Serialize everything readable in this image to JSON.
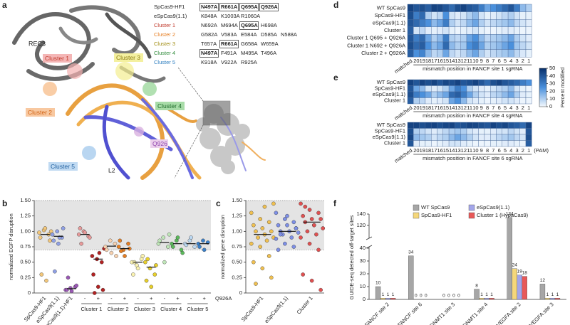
{
  "panel_labels": [
    "a",
    "b",
    "c",
    "d",
    "e",
    "f"
  ],
  "structure_labels": {
    "rec3": "REC3",
    "cluster1": "Cluster 1",
    "cluster2": "Cluster 2",
    "cluster3": "Cluster 3",
    "cluster4": "Cluster 4",
    "cluster5": "Cluster 5",
    "q926": "Q926",
    "l2": "L2"
  },
  "mutation_table": [
    {
      "name": "SpCas9-HF1",
      "color": "#222222",
      "mutations": [
        {
          "text": "N497A",
          "boxed": true
        },
        {
          "text": "R661A",
          "boxed": true
        },
        {
          "text": "Q695A",
          "boxed": true
        },
        {
          "text": "Q926A",
          "boxed": true
        }
      ]
    },
    {
      "name": "eSpCas9(1.1)",
      "color": "#222222",
      "mutations": [
        {
          "text": "K848A",
          "boxed": false
        },
        {
          "text": "K1003A",
          "boxed": false
        },
        {
          "text": "R1060A",
          "boxed": false
        }
      ]
    },
    {
      "name": "Cluster 1",
      "color": "#c0392b",
      "mutations": [
        {
          "text": "N692A",
          "boxed": false
        },
        {
          "text": "M694A",
          "boxed": false
        },
        {
          "text": "Q695A",
          "boxed": true
        },
        {
          "text": "H698A",
          "boxed": false
        }
      ]
    },
    {
      "name": "Cluster 2",
      "color": "#e67e22",
      "mutations": [
        {
          "text": "G582A",
          "boxed": false
        },
        {
          "text": "V583A",
          "boxed": false
        },
        {
          "text": "E584A",
          "boxed": false
        },
        {
          "text": "D585A",
          "boxed": false
        },
        {
          "text": "N588A",
          "boxed": false
        }
      ]
    },
    {
      "name": "Cluster 3",
      "color": "#a08c10",
      "mutations": [
        {
          "text": "T657A",
          "boxed": false
        },
        {
          "text": "R661A",
          "boxed": true
        },
        {
          "text": "G658A",
          "boxed": false
        },
        {
          "text": "W659A",
          "boxed": false
        }
      ]
    },
    {
      "name": "Cluster 4",
      "color": "#2e8b3a",
      "mutations": [
        {
          "text": "N497A",
          "boxed": true
        },
        {
          "text": "F491A",
          "boxed": false
        },
        {
          "text": "M495A",
          "boxed": false
        },
        {
          "text": "T496A",
          "boxed": false
        }
      ]
    },
    {
      "name": "Cluster 5",
      "color": "#2f7fc0",
      "mutations": [
        {
          "text": "K918A",
          "boxed": false
        },
        {
          "text": "V922A",
          "boxed": false
        },
        {
          "text": "R925A",
          "boxed": false
        }
      ]
    }
  ],
  "chart_data": [
    {
      "type": "dot",
      "ylabel": "normalized EGFP disruption",
      "ylim": [
        0,
        1.5
      ],
      "yticks": [
        0,
        0.25,
        {
          "value": 0.5,
          "label": "0.50"
        },
        0.75,
        {
          "value": 1,
          "label": "1.00"
        },
        1.25,
        {
          "value": 1.5,
          "label": "1.50"
        }
      ],
      "shaded_range": [
        0.7,
        1.5
      ],
      "categories": [
        "SpCas9-HF1",
        "eSpCas9(1.1)",
        "eSpCas9(1.1)-HF1",
        "-",
        "+",
        "-",
        "+",
        "-",
        "+",
        "-",
        "+",
        "-",
        "+"
      ],
      "group_labels": [
        "Cluster 1",
        "Cluster 2",
        "Cluster 3",
        "Cluster 4",
        "Cluster 5"
      ],
      "annotation": "Q926A",
      "points": [
        {
          "color": "#f3c77a",
          "values": [
            0.98,
            1.02,
            0.95,
            0.9,
            1.05,
            0.85,
            0.3,
            0.2,
            1.0
          ],
          "mean": 0.95
        },
        {
          "color": "#8fa0e6",
          "values": [
            0.95,
            1.0,
            0.9,
            0.85,
            0.8,
            1.05,
            0.35,
            0.9
          ],
          "mean": 0.92
        },
        {
          "color": "#9b59b6",
          "values": [
            0.05,
            0.08,
            0.1,
            0.05,
            0.03,
            0.12,
            0.25
          ],
          "mean": 0.07
        },
        {
          "color": "#e89a9a",
          "values": [
            0.95,
            1.0,
            0.92,
            1.05,
            0.98,
            0.9,
            0.8
          ],
          "mean": 0.95
        },
        {
          "color": "#b22222",
          "values": [
            0.6,
            0.55,
            0.5,
            0.3,
            0.1,
            0.05,
            0.0,
            0.65,
            0.72
          ],
          "mean": 0.55
        },
        {
          "color": "#f8d2b0",
          "values": [
            0.75,
            0.85,
            0.8,
            0.7,
            0.65,
            0.6
          ],
          "mean": 0.76
        },
        {
          "color": "#e67e22",
          "values": [
            0.75,
            0.7,
            0.8,
            0.85,
            0.6,
            0.72,
            0.68
          ],
          "mean": 0.72
        },
        {
          "color": "#fbf3b0",
          "values": [
            0.5,
            0.45,
            0.55,
            0.3,
            0.4,
            0.6,
            0.5
          ],
          "mean": 0.5
        },
        {
          "color": "#e8cf2a",
          "values": [
            0.5,
            0.4,
            0.3,
            0.2,
            0.1,
            0.45,
            0.55
          ],
          "mean": 0.42
        },
        {
          "color": "#bfe6b8",
          "values": [
            0.8,
            0.9,
            0.75,
            0.85,
            0.5,
            0.95
          ],
          "mean": 0.82
        },
        {
          "color": "#5cb85c",
          "values": [
            0.8,
            0.85,
            0.7,
            0.75,
            0.9,
            0.65
          ],
          "mean": 0.8
        },
        {
          "color": "#bcd8f2",
          "values": [
            0.8,
            0.85,
            0.75,
            0.78,
            0.9
          ],
          "mean": 0.8
        },
        {
          "color": "#3a7fc8",
          "values": [
            0.8,
            0.85,
            0.82,
            0.75,
            0.7
          ],
          "mean": 0.8
        }
      ]
    },
    {
      "type": "dot",
      "ylabel": "normalized gene disruption",
      "ylim": [
        0,
        1.5
      ],
      "yticks": [
        0,
        0.25,
        {
          "value": 0.5,
          "label": "0.50"
        },
        0.75,
        {
          "value": 1,
          "label": "1.00"
        },
        1.25,
        {
          "value": 1.5,
          "label": "1.50"
        }
      ],
      "shaded_range": [
        0.7,
        1.5
      ],
      "categories": [
        "SpCas9-HF1",
        "eSpCas9(1.1)",
        "Cluster 1"
      ],
      "points": [
        {
          "color": "#f0c050",
          "values": [
            1.3,
            1.2,
            1.15,
            1.1,
            1.05,
            1.0,
            1.0,
            0.95,
            0.9,
            0.9,
            0.85,
            0.8,
            0.75,
            0.6,
            0.5,
            0.4,
            0.25,
            0.15,
            1.4,
            1.45
          ],
          "mean": 0.95
        },
        {
          "color": "#7d8fe6",
          "values": [
            1.3,
            1.2,
            1.15,
            1.1,
            1.1,
            1.05,
            1.0,
            1.0,
            0.98,
            0.95,
            0.9,
            0.88,
            0.8,
            0.75,
            0.7,
            1.25,
            1.05,
            0.95
          ],
          "mean": 1.0
        },
        {
          "color": "#e05050",
          "values": [
            1.45,
            1.35,
            1.3,
            1.25,
            1.2,
            1.2,
            1.15,
            1.1,
            1.05,
            1.0,
            0.95,
            0.9,
            0.8,
            0.7,
            0.3,
            0.2,
            0.05,
            1.4,
            1.1
          ],
          "mean": 1.15
        }
      ]
    },
    {
      "type": "heatmap",
      "xlabel": "mismatch position in FANCF site 1 sgRNA",
      "rows": [
        "WT SpCas9",
        "SpCas9-HF1",
        "eSpCas9(1.1)",
        "Cluster 1",
        "Cluster 1 Q695 + Q926A",
        "Cluster 1 N692 + Q926A",
        "Cluster 2 + Q926A"
      ],
      "columns": [
        "matched",
        "20",
        "19",
        "18",
        "17",
        "16",
        "15",
        "14",
        "13",
        "12",
        "11",
        "10",
        "9",
        "8",
        "7",
        "6",
        "5",
        "4",
        "3",
        "2",
        "1"
      ],
      "values": [
        [
          45,
          40,
          42,
          38,
          45,
          44,
          40,
          35,
          42,
          45,
          40,
          38,
          30,
          20,
          25,
          30,
          35,
          40,
          30,
          15,
          10
        ],
        [
          42,
          30,
          35,
          10,
          5,
          8,
          25,
          5,
          3,
          5,
          10,
          15,
          5,
          2,
          3,
          5,
          8,
          10,
          5,
          2,
          2
        ],
        [
          40,
          35,
          30,
          25,
          15,
          20,
          30,
          10,
          5,
          8,
          15,
          20,
          10,
          5,
          8,
          10,
          12,
          15,
          8,
          5,
          3
        ],
        [
          38,
          5,
          8,
          3,
          2,
          3,
          5,
          2,
          1,
          2,
          3,
          5,
          2,
          1,
          1,
          2,
          3,
          3,
          2,
          1,
          1
        ],
        [
          40,
          30,
          35,
          20,
          10,
          15,
          30,
          10,
          8,
          10,
          20,
          25,
          15,
          8,
          10,
          12,
          15,
          20,
          10,
          5,
          3
        ],
        [
          42,
          35,
          38,
          25,
          15,
          20,
          35,
          15,
          10,
          12,
          25,
          30,
          20,
          10,
          12,
          15,
          20,
          25,
          12,
          8,
          5
        ],
        [
          38,
          25,
          28,
          15,
          8,
          10,
          20,
          8,
          5,
          8,
          15,
          20,
          10,
          5,
          8,
          10,
          12,
          15,
          8,
          4,
          2
        ]
      ],
      "colorbar": {
        "label": "Percent modified",
        "lim": [
          0,
          50
        ],
        "ticks": [
          0,
          10,
          20,
          30,
          40,
          50
        ],
        "colors": [
          "#f4f9fe",
          "#4a90dc",
          "#08306b"
        ]
      }
    },
    {
      "type": "heatmap",
      "xlabel": "mismatch position in FANCF site 4 sgRNA",
      "rows": [
        "WT SpCas9",
        "SpCas9-HF1",
        "eSpCas9(1.1)",
        "Cluster 1"
      ],
      "columns": [
        "matched",
        "20",
        "19",
        "18",
        "17",
        "16",
        "15",
        "14",
        "13",
        "12",
        "11",
        "10",
        "9",
        "8",
        "7",
        "6",
        "5",
        "4",
        "3",
        "2",
        "1"
      ],
      "values": [
        [
          45,
          40,
          45,
          42,
          45,
          40,
          44,
          42,
          45,
          40,
          42,
          45,
          40,
          35,
          42,
          45,
          40,
          38,
          35,
          30,
          25
        ],
        [
          40,
          20,
          15,
          5,
          3,
          5,
          10,
          20,
          30,
          25,
          10,
          5,
          3,
          2,
          5,
          8,
          10,
          15,
          5,
          2,
          1
        ],
        [
          42,
          30,
          25,
          20,
          10,
          15,
          20,
          35,
          38,
          30,
          20,
          10,
          5,
          3,
          8,
          10,
          15,
          20,
          10,
          3,
          2
        ],
        [
          38,
          10,
          8,
          3,
          2,
          3,
          5,
          20,
          25,
          15,
          5,
          3,
          2,
          1,
          2,
          3,
          5,
          5,
          3,
          1,
          1
        ]
      ]
    },
    {
      "type": "heatmap",
      "xlabel": "mismatch position in FANCF site 6 sgRNA",
      "annotation": "(PAM)",
      "rows": [
        "WT SpCas9",
        "SpCas9-HF1",
        "eSpCas9(1.1)",
        "Cluster 1"
      ],
      "columns": [
        "matched",
        "20",
        "19",
        "18",
        "17",
        "16",
        "15",
        "14",
        "13",
        "12",
        "11",
        "10",
        "9",
        "8",
        "7",
        "6",
        "5",
        "4",
        "3",
        "2",
        "1"
      ],
      "values": [
        [
          45,
          45,
          42,
          44,
          45,
          42,
          44,
          45,
          40,
          42,
          45,
          44,
          42,
          40,
          45,
          42,
          44,
          40,
          38,
          35,
          45
        ],
        [
          42,
          10,
          8,
          5,
          3,
          5,
          8,
          10,
          12,
          10,
          5,
          3,
          2,
          2,
          3,
          5,
          5,
          8,
          5,
          3,
          40
        ],
        [
          44,
          15,
          12,
          10,
          5,
          8,
          10,
          15,
          20,
          15,
          10,
          5,
          3,
          3,
          5,
          8,
          10,
          12,
          8,
          5,
          42
        ],
        [
          40,
          3,
          2,
          2,
          1,
          2,
          3,
          5,
          5,
          3,
          2,
          1,
          1,
          1,
          2,
          2,
          3,
          3,
          2,
          1,
          38
        ]
      ]
    },
    {
      "type": "bar",
      "ylabel": "GUIDE-seq detected off-target sites",
      "ylim": [
        0,
        140
      ],
      "axis_break": [
        40,
        100
      ],
      "yticks": [
        0,
        10,
        20,
        30,
        40,
        120,
        140
      ],
      "categories": [
        "FANCF site 2",
        "FANCF site 6",
        "DNMT1 site 3",
        "DNMT1 site 4",
        "VEGFA site 2",
        "VEGFA site 3"
      ],
      "series": [
        {
          "name": "WT SpCas9",
          "color": "#a6a6a6",
          "values": [
            10,
            34,
            0,
            8,
            134,
            12
          ]
        },
        {
          "name": "SpCas9-HF1",
          "color": "#f5d77a",
          "values": [
            1,
            0,
            0,
            1,
            24,
            1
          ]
        },
        {
          "name": "eSpCas9(1.1)",
          "color": "#a3a6ea",
          "values": [
            1,
            0,
            0,
            1,
            19,
            1
          ]
        },
        {
          "name": "Cluster 1 (HypaCas9)",
          "color": "#e85858",
          "values": [
            1,
            0,
            0,
            1,
            18,
            1
          ]
        }
      ]
    }
  ]
}
